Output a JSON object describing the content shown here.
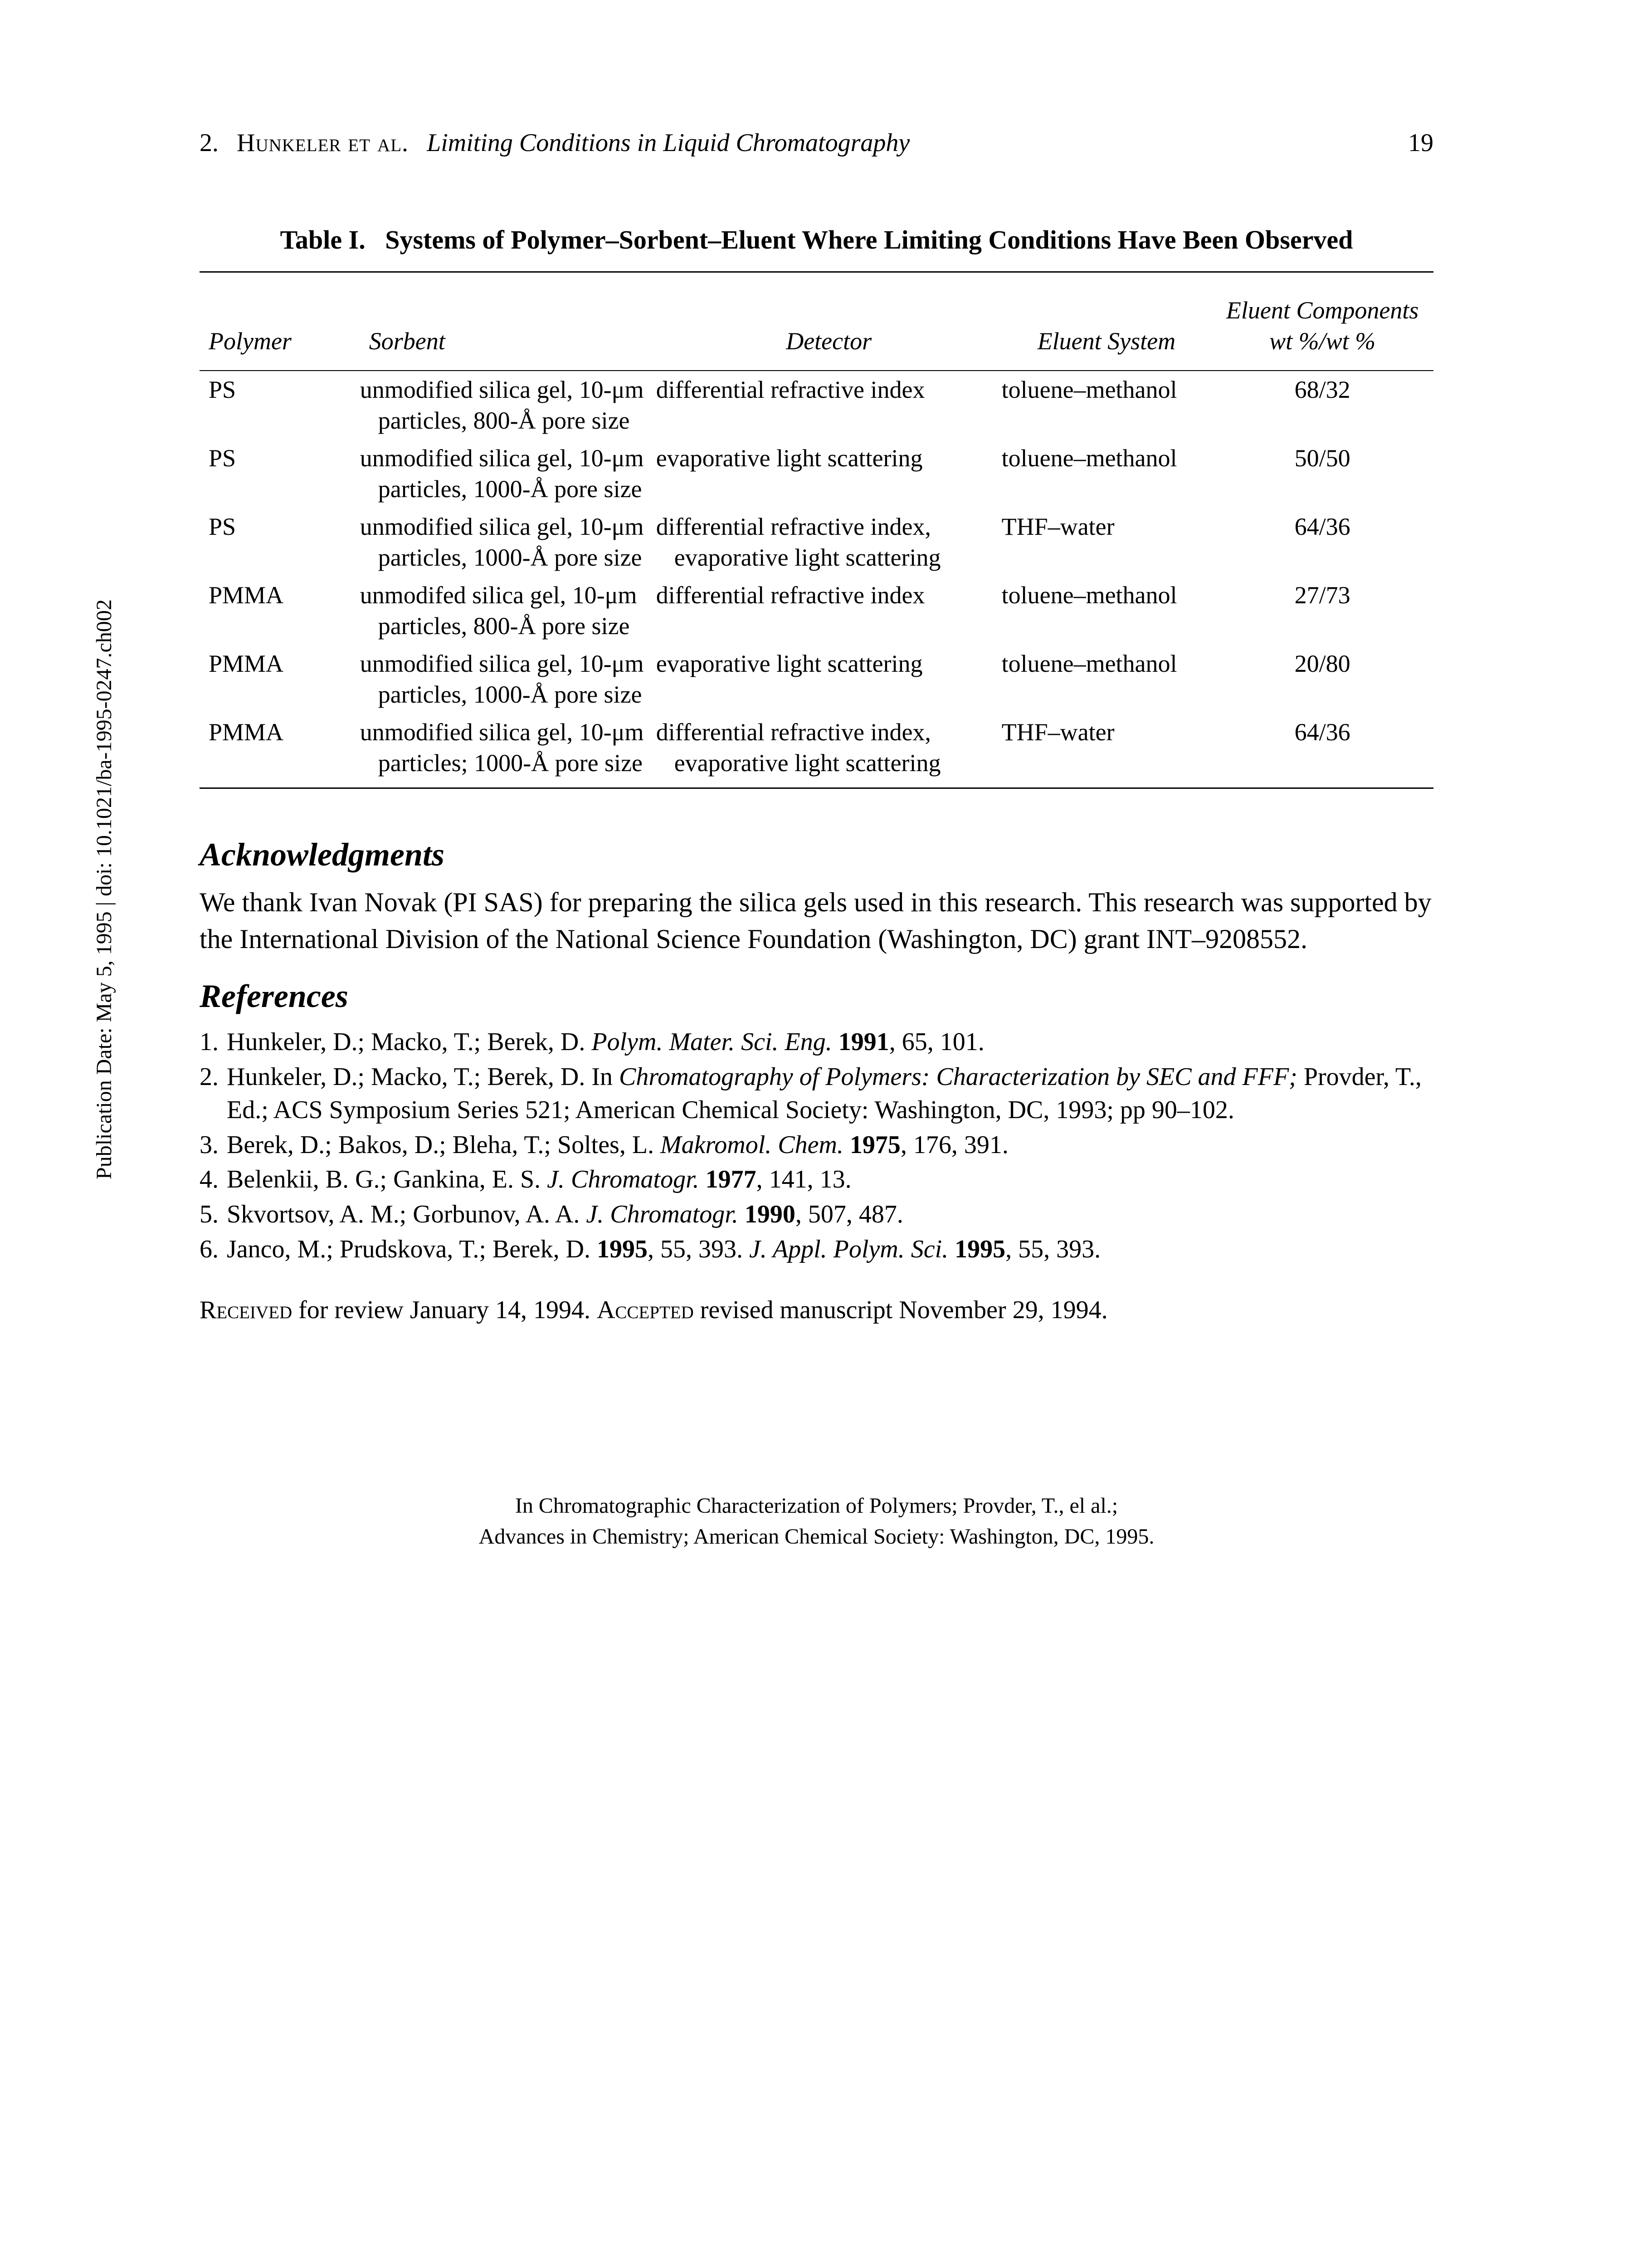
{
  "header": {
    "chapter_num": "2.",
    "authors": "Hunkeler et al.",
    "running_title": "Limiting Conditions in Liquid Chromatography",
    "page_number": "19"
  },
  "table": {
    "title_prefix": "Table I.",
    "title": "Systems of Polymer–Sorbent–Eluent Where Limiting Conditions Have Been Observed",
    "columns": {
      "polymer": "Polymer",
      "sorbent": "Sorbent",
      "detector": "Detector",
      "eluent_system": "Eluent System",
      "eluent_components": "Eluent Components wt %/wt %"
    },
    "rows": [
      {
        "polymer": "PS",
        "sorbent": "unmodified silica gel, 10-μm particles, 800-Å pore size",
        "detector": "differential refractive index",
        "eluent_system": "toluene–methanol",
        "eluent_components": "68/32"
      },
      {
        "polymer": "PS",
        "sorbent": "unmodified silica gel, 10-μm particles, 1000-Å pore size",
        "detector": "evaporative light scattering",
        "eluent_system": "toluene–methanol",
        "eluent_components": "50/50"
      },
      {
        "polymer": "PS",
        "sorbent": "unmodified silica gel, 10-μm particles, 1000-Å pore size",
        "detector": "differential refractive index, evaporative light scattering",
        "eluent_system": "THF–water",
        "eluent_components": "64/36"
      },
      {
        "polymer": "PMMA",
        "sorbent": "unmodifed silica gel, 10-μm particles, 800-Å pore size",
        "detector": "differential refractive index",
        "eluent_system": "toluene–methanol",
        "eluent_components": "27/73"
      },
      {
        "polymer": "PMMA",
        "sorbent": "unmodified silica gel, 10-μm particles, 1000-Å pore size",
        "detector": "evaporative light scattering",
        "eluent_system": "toluene–methanol",
        "eluent_components": "20/80"
      },
      {
        "polymer": "PMMA",
        "sorbent": "unmodified silica gel, 10-μm particles; 1000-Å pore size",
        "detector": "differential refractive index, evaporative light scattering",
        "eluent_system": "THF–water",
        "eluent_components": "64/36"
      }
    ]
  },
  "acknowledgments": {
    "heading": "Acknowledgments",
    "text": "We thank Ivan Novak (PI SAS) for preparing the silica gels used in this research. This research was supported by the International Division of the National Science Foundation (Washington, DC) grant INT–9208552."
  },
  "references": {
    "heading": "References",
    "items": [
      "Hunkeler, D.; Macko, T.; Berek, D. Polym. Mater. Sci. Eng. 1991, 65, 101.",
      "Hunkeler, D.; Macko, T.; Berek, D. In Chromatography of Polymers: Characterization by SEC and FFF; Provder, T., Ed.; ACS Symposium Series 521; American Chemical Society: Washington, DC, 1993; pp 90–102.",
      "Berek, D.; Bakos, D.; Bleha, T.; Soltes, L. Makromol. Chem. 1975, 176, 391.",
      "Belenkii, B. G.; Gankina, E. S. J. Chromatogr. 1977, 141, 13.",
      "Skvortsov, A. M.; Gorbunov, A. A. J. Chromatogr. 1990, 507, 487.",
      "Janco, M.; Prudskova, T.; Berek, D. 1995, 55, 393. J. Appl. Polym. Sci. 1995, 55, 393."
    ]
  },
  "received": {
    "text": "Received for review January 14, 1994. Accepted revised manuscript November 29, 1994."
  },
  "footer": {
    "line1": "In Chromatographic Characterization of Polymers; Provder, T., el al.;",
    "line2": "Advances in Chemistry; American Chemical Society: Washington, DC, 1995."
  },
  "sidebar": {
    "text": "Publication Date: May 5, 1995 | doi: 10.1021/ba-1995-0247.ch002"
  }
}
